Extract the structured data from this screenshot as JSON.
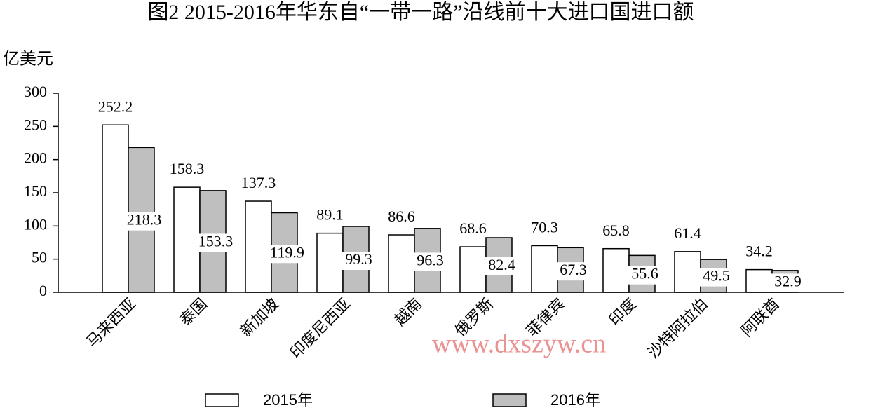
{
  "chart_data": {
    "type": "bar",
    "title": "图2  2015-2016年华东自“一带一路”沿线前十大进口国进口额",
    "y_axis_label": "亿美元",
    "watermark": "www.dxszyw.cn",
    "categories": [
      "马来西亚",
      "泰国",
      "新加坡",
      "印度尼西亚",
      "越南",
      "俄罗斯",
      "菲律宾",
      "印度",
      "沙特阿拉伯",
      "阿联酋"
    ],
    "series": [
      {
        "name": "2015年",
        "color": "#ffffff",
        "values": [
          252.2,
          158.3,
          137.3,
          89.1,
          86.6,
          68.6,
          70.3,
          65.8,
          61.4,
          34.2
        ]
      },
      {
        "name": "2016年",
        "color": "#bfbfbf",
        "values": [
          218.3,
          153.3,
          119.9,
          99.3,
          96.3,
          82.4,
          67.3,
          55.6,
          49.5,
          32.9
        ]
      }
    ],
    "ylim": [
      0,
      300
    ],
    "yticks": [
      0,
      50,
      100,
      150,
      200,
      250,
      300
    ],
    "grid": false
  }
}
